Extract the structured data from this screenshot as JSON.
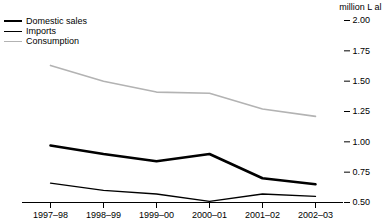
{
  "chart_data": {
    "type": "line",
    "y_label": "million L al",
    "categories": [
      "1997–98",
      "1998–99",
      "1999–00",
      "2000–01",
      "2001–02",
      "2002–03"
    ],
    "series": [
      {
        "name": "Domestic sales",
        "color": "#000000",
        "values": [
          0.97,
          0.9,
          0.84,
          0.9,
          0.7,
          0.65
        ]
      },
      {
        "name": "Imports",
        "color": "#000000",
        "values": [
          0.66,
          0.6,
          0.57,
          0.51,
          0.57,
          0.55
        ]
      },
      {
        "name": "Consumption",
        "color": "#b3b3b3",
        "values": [
          1.63,
          1.5,
          1.41,
          1.4,
          1.27,
          1.21
        ]
      }
    ],
    "ylim": [
      0.5,
      2.0
    ],
    "yticks": [
      {
        "value": 0.5,
        "label": "0.50"
      },
      {
        "value": 0.75,
        "label": "0.75"
      },
      {
        "value": 1.0,
        "label": "1.00"
      },
      {
        "value": 1.25,
        "label": "1.25"
      },
      {
        "value": 1.5,
        "label": "1.50"
      },
      {
        "value": 1.75,
        "label": "1.75"
      },
      {
        "value": 2.0,
        "label": "2.00"
      }
    ],
    "grid": false,
    "legend": "top-left"
  }
}
